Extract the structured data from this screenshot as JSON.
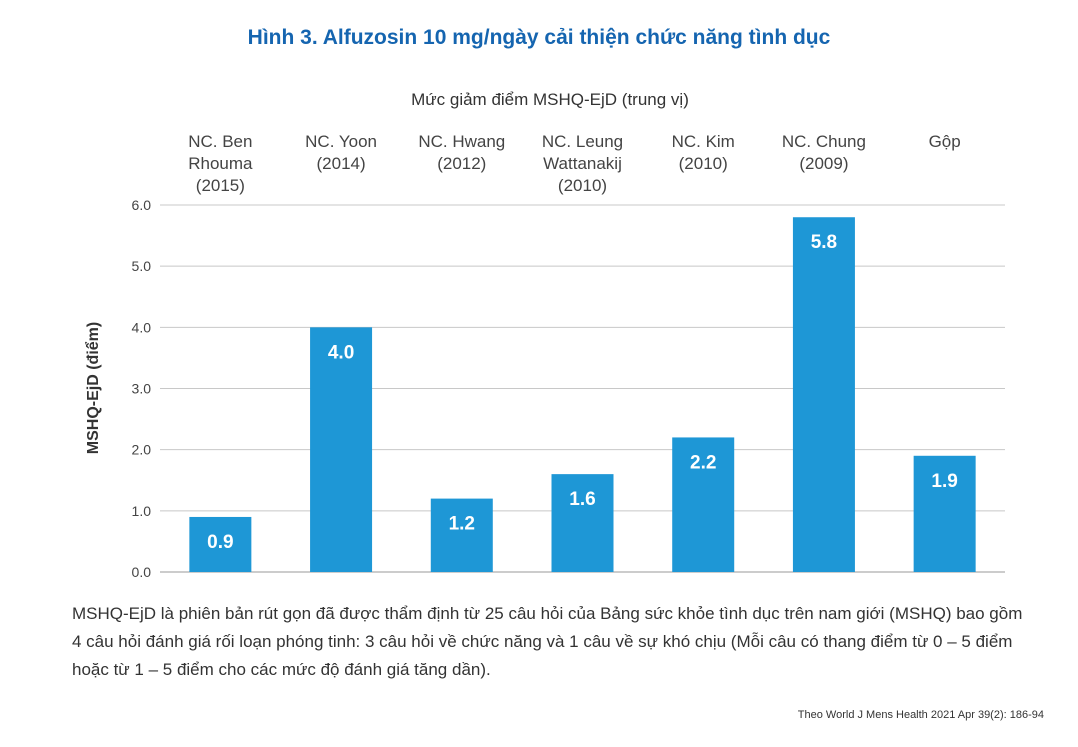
{
  "title": "Hình 3. Alfuzosin 10 mg/ngày cải thiện chức năng tình dục",
  "caption": "MSHQ-EjD là phiên bản rút gọn đã được thẩm định từ 25 câu hỏi của Bảng sức khỏe tình dục trên nam giới (MSHQ) bao gồm 4 câu hỏi đánh giá rối loạn phóng tinh: 3 câu hỏi về chức năng và 1 câu về sự khó chịu (Mỗi câu có thang điểm từ 0 – 5 điểm hoặc từ 1 – 5 điểm cho các mức độ đánh giá tăng dần).",
  "source": "Theo World J Mens Health 2021 Apr 39(2): 186-94",
  "colors": {
    "bar": "#1e97d6",
    "title": "#1565b0",
    "grid": "#c8c8c8"
  },
  "chart_data": {
    "type": "bar",
    "title": "Mức giảm điểm MSHQ-EjD (trung vị)",
    "xlabel": "",
    "ylabel": "MSHQ-EjD (điểm)",
    "categories": [
      [
        "NC. Ben",
        "Rhouma",
        "(2015)"
      ],
      [
        "NC. Yoon",
        "(2014)"
      ],
      [
        "NC. Hwang",
        "(2012)"
      ],
      [
        "NC. Leung",
        "Wattanakij",
        "(2010)"
      ],
      [
        "NC. Kim",
        "(2010)"
      ],
      [
        "NC. Chung",
        "(2009)"
      ],
      [
        "Gộp"
      ]
    ],
    "values": [
      0.9,
      4.0,
      1.2,
      1.6,
      2.2,
      5.8,
      1.9
    ],
    "value_labels": [
      "0.9",
      "4.0",
      "1.2",
      "1.6",
      "2.2",
      "5.8",
      "1.9"
    ],
    "ylim": [
      0,
      6
    ],
    "yticks": [
      0,
      1,
      2,
      3,
      4,
      5,
      6
    ],
    "ytick_labels": [
      "0.0",
      "1.0",
      "2.0",
      "3.0",
      "4.0",
      "5.0",
      "6.0"
    ],
    "grid": true,
    "category_labels_position": "top"
  }
}
